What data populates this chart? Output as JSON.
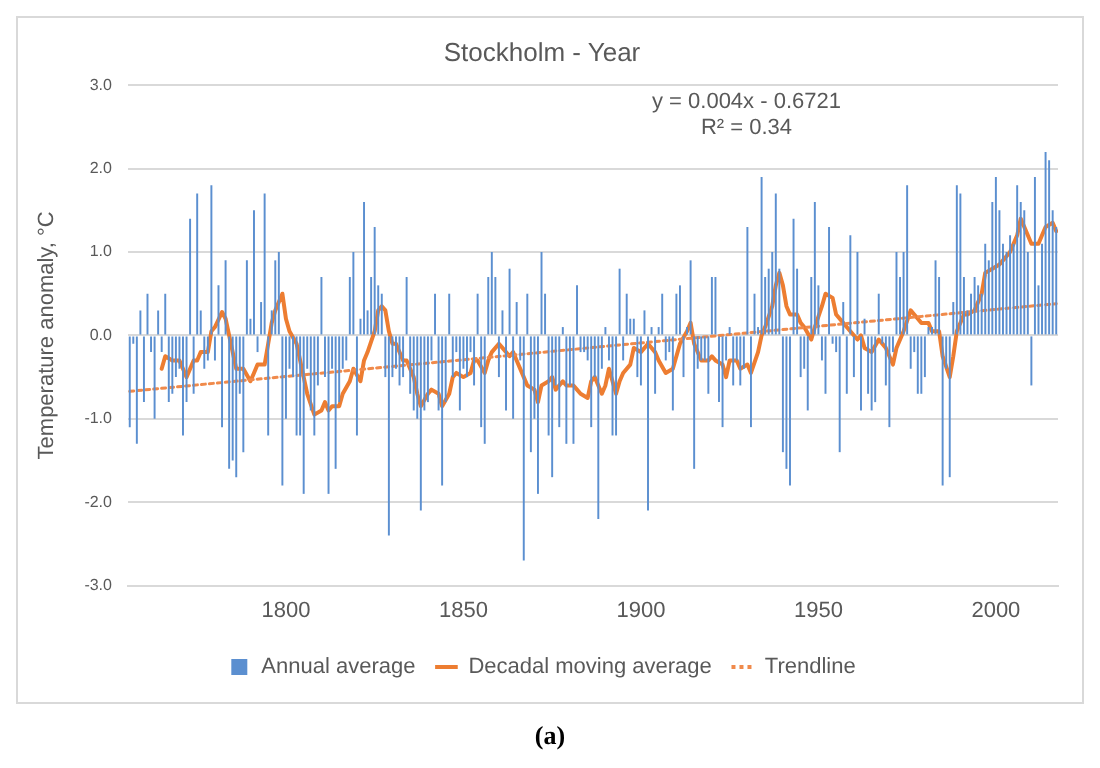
{
  "chart_data": {
    "type": "bar",
    "title": "Stockholm - Year",
    "ylabel": "Temperature anomaly, °C",
    "annotations": [
      "y = 0.004x - 0.6721",
      "R² = 0.34",
      "(a)"
    ],
    "x": [
      1756,
      1757,
      1758,
      1759,
      1760,
      1761,
      1762,
      1763,
      1764,
      1765,
      1766,
      1767,
      1768,
      1769,
      1770,
      1771,
      1772,
      1773,
      1774,
      1775,
      1776,
      1777,
      1778,
      1779,
      1780,
      1781,
      1782,
      1783,
      1784,
      1785,
      1786,
      1787,
      1788,
      1789,
      1790,
      1791,
      1792,
      1793,
      1794,
      1795,
      1796,
      1797,
      1798,
      1799,
      1800,
      1801,
      1802,
      1803,
      1804,
      1805,
      1806,
      1807,
      1808,
      1809,
      1810,
      1811,
      1812,
      1813,
      1814,
      1815,
      1816,
      1817,
      1818,
      1819,
      1820,
      1821,
      1822,
      1823,
      1824,
      1825,
      1826,
      1827,
      1828,
      1829,
      1830,
      1831,
      1832,
      1833,
      1834,
      1835,
      1836,
      1837,
      1838,
      1839,
      1840,
      1841,
      1842,
      1843,
      1844,
      1845,
      1846,
      1847,
      1848,
      1849,
      1850,
      1851,
      1852,
      1853,
      1854,
      1855,
      1856,
      1857,
      1858,
      1859,
      1860,
      1861,
      1862,
      1863,
      1864,
      1865,
      1866,
      1867,
      1868,
      1869,
      1870,
      1871,
      1872,
      1873,
      1874,
      1875,
      1876,
      1877,
      1878,
      1879,
      1880,
      1881,
      1882,
      1883,
      1884,
      1885,
      1886,
      1887,
      1888,
      1889,
      1890,
      1891,
      1892,
      1893,
      1894,
      1895,
      1896,
      1897,
      1898,
      1899,
      1900,
      1901,
      1902,
      1903,
      1904,
      1905,
      1906,
      1907,
      1908,
      1909,
      1910,
      1911,
      1912,
      1913,
      1914,
      1915,
      1916,
      1917,
      1918,
      1919,
      1920,
      1921,
      1922,
      1923,
      1924,
      1925,
      1926,
      1927,
      1928,
      1929,
      1930,
      1931,
      1932,
      1933,
      1934,
      1935,
      1936,
      1937,
      1938,
      1939,
      1940,
      1941,
      1942,
      1943,
      1944,
      1945,
      1946,
      1947,
      1948,
      1949,
      1950,
      1951,
      1952,
      1953,
      1954,
      1955,
      1956,
      1957,
      1958,
      1959,
      1960,
      1961,
      1962,
      1963,
      1964,
      1965,
      1966,
      1967,
      1968,
      1969,
      1970,
      1971,
      1972,
      1973,
      1974,
      1975,
      1976,
      1977,
      1978,
      1979,
      1980,
      1981,
      1982,
      1983,
      1984,
      1985,
      1986,
      1987,
      1988,
      1989,
      1990,
      1991,
      1992,
      1993,
      1994,
      1995,
      1996,
      1997,
      1998,
      1999,
      2000,
      2001,
      2002,
      2003,
      2004,
      2005,
      2006,
      2007,
      2008,
      2009,
      2010,
      2011,
      2012,
      2013,
      2014,
      2015,
      2016,
      2017
    ],
    "xlim": [
      1755.5,
      2017.5
    ],
    "xticks": [
      1800,
      1850,
      1900,
      1950,
      2000
    ],
    "ylim": [
      -3,
      3
    ],
    "yticks": [
      {
        "value": -3,
        "label": "-3.0"
      },
      {
        "value": -2,
        "label": "-2.0"
      },
      {
        "value": -1,
        "label": "-1.0"
      },
      {
        "value": 0,
        "label": "0.0"
      },
      {
        "value": 1,
        "label": "1.0"
      },
      {
        "value": 2,
        "label": "2.0"
      },
      {
        "value": 3,
        "label": "3.0"
      }
    ],
    "grid": "y",
    "legend": "bottom",
    "marker": "none",
    "series": [
      {
        "name": "Annual average",
        "type": "bar",
        "color": "#5b8fd0",
        "values": [
          -1.1,
          -0.1,
          -1.3,
          0.3,
          -0.8,
          0.5,
          -0.2,
          -1.0,
          0.3,
          -0.2,
          0.5,
          -0.8,
          -0.7,
          -0.5,
          -0.4,
          -1.2,
          -0.8,
          1.4,
          -0.7,
          1.7,
          0.3,
          -0.4,
          -0.3,
          1.8,
          -0.3,
          0.6,
          -1.1,
          0.9,
          -1.6,
          -1.5,
          -1.7,
          -0.7,
          -1.4,
          0.9,
          0.2,
          1.5,
          -0.2,
          0.4,
          1.7,
          -1.2,
          0.3,
          0.9,
          1.0,
          -1.8,
          -1.0,
          -0.4,
          -0.5,
          -1.2,
          -1.2,
          -1.9,
          -0.4,
          -0.9,
          -1.2,
          -0.6,
          0.7,
          -0.5,
          -1.9,
          -0.4,
          -1.6,
          -0.8,
          -0.4,
          -0.3,
          0.7,
          1.0,
          -1.2,
          0.2,
          1.6,
          0.3,
          0.7,
          1.3,
          0.6,
          0.5,
          -0.5,
          -2.4,
          -0.5,
          -0.4,
          -0.6,
          -0.5,
          0.7,
          -0.7,
          -0.9,
          -1.0,
          -2.1,
          -0.9,
          -0.8,
          -0.3,
          0.5,
          -0.9,
          -1.8,
          -0.8,
          0.5,
          -0.5,
          -0.2,
          -0.9,
          -0.4,
          -0.5,
          -0.2,
          -0.6,
          0.5,
          -1.1,
          -1.3,
          0.7,
          1.0,
          0.7,
          -0.5,
          0.3,
          -0.9,
          0.8,
          -1.0,
          0.4,
          -0.3,
          -2.7,
          0.5,
          -1.4,
          -1.0,
          -1.9,
          1.0,
          0.5,
          -1.2,
          -1.7,
          -0.6,
          -1.1,
          0.1,
          -1.3,
          -0.6,
          -1.3,
          0.6,
          -0.2,
          -0.2,
          -0.3,
          -1.1,
          -0.5,
          -2.2,
          -0.4,
          0.1,
          -0.3,
          -1.2,
          -1.2,
          0.8,
          -0.3,
          0.5,
          0.2,
          0.2,
          -0.5,
          -0.6,
          0.3,
          -2.1,
          0.1,
          -0.7,
          0.1,
          0.5,
          -0.3,
          -0.2,
          -0.9,
          0.5,
          0.6,
          -0.5,
          0.1,
          0.9,
          -1.6,
          -0.4,
          -0.3,
          -0.3,
          -0.7,
          0.7,
          0.7,
          -0.8,
          -1.1,
          -0.3,
          0.1,
          -0.6,
          -0.3,
          -0.6,
          -0.4,
          1.3,
          -1.1,
          0.5,
          0.1,
          1.9,
          0.7,
          0.8,
          1.0,
          1.7,
          0.8,
          -1.4,
          -1.6,
          -1.8,
          1.4,
          0.8,
          -0.5,
          -0.4,
          -0.9,
          0.7,
          1.6,
          0.6,
          -0.3,
          -0.7,
          1.3,
          -0.1,
          -0.2,
          -1.4,
          0.4,
          -0.7,
          1.2,
          -0.5,
          1.0,
          -0.9,
          0.2,
          -0.7,
          -0.9,
          -0.8,
          0.5,
          -0.1,
          -0.6,
          -1.1,
          -0.2,
          1.0,
          0.7,
          1.0,
          1.8,
          -0.4,
          -0.2,
          -0.7,
          -0.7,
          -0.5,
          0.1,
          0.1,
          0.9,
          0.7,
          -1.8,
          -0.4,
          -1.7,
          0.4,
          1.8,
          1.7,
          0.7,
          0.3,
          0.5,
          0.7,
          0.6,
          0.5,
          1.1,
          0.9,
          1.6,
          1.9,
          1.5,
          1.1,
          1.0,
          1.2,
          1.1,
          1.8,
          1.6,
          1.5,
          1.0,
          -0.6,
          1.9,
          0.6,
          1.1,
          2.2,
          2.1,
          1.5,
          1.3
        ]
      },
      {
        "name": "Decadal moving average",
        "type": "line",
        "color": "#ed7d31",
        "x": [
          1765,
          1766,
          1768,
          1770,
          1772,
          1774,
          1775,
          1776,
          1778,
          1779,
          1780,
          1782,
          1783,
          1784,
          1786,
          1788,
          1790,
          1791,
          1792,
          1794,
          1795,
          1796,
          1797,
          1799,
          1800,
          1801,
          1803,
          1805,
          1806,
          1808,
          1810,
          1811,
          1812,
          1813,
          1815,
          1816,
          1818,
          1819,
          1821,
          1822,
          1823,
          1825,
          1826,
          1827,
          1828,
          1829,
          1830,
          1831,
          1833,
          1834,
          1836,
          1837,
          1838,
          1840,
          1841,
          1843,
          1844,
          1846,
          1847,
          1848,
          1850,
          1852,
          1853,
          1854,
          1856,
          1857,
          1858,
          1860,
          1861,
          1863,
          1864,
          1865,
          1867,
          1868,
          1870,
          1871,
          1872,
          1874,
          1875,
          1876,
          1878,
          1879,
          1881,
          1882,
          1883,
          1885,
          1886,
          1887,
          1889,
          1890,
          1891,
          1893,
          1894,
          1895,
          1897,
          1898,
          1900,
          1902,
          1904,
          1905,
          1907,
          1909,
          1911,
          1913,
          1914,
          1915,
          1917,
          1919,
          1920,
          1921,
          1923,
          1924,
          1925,
          1927,
          1928,
          1930,
          1931,
          1933,
          1934,
          1935,
          1937,
          1938,
          1939,
          1940,
          1941,
          1942,
          1944,
          1945,
          1946,
          1948,
          1949,
          1951,
          1952,
          1954,
          1955,
          1957,
          1959,
          1961,
          1962,
          1963,
          1965,
          1967,
          1969,
          1971,
          1972,
          1974,
          1976,
          1977,
          1979,
          1981,
          1982,
          1984,
          1985,
          1987,
          1988,
          1989,
          1991,
          1992,
          1994,
          1996,
          1997,
          1999,
          2001,
          2002,
          2004,
          2006,
          2007,
          2009,
          2010,
          2012,
          2013,
          2014,
          2016,
          2017
        ],
        "values": [
          -0.4,
          -0.25,
          -0.3,
          -0.3,
          -0.5,
          -0.3,
          -0.3,
          -0.2,
          -0.2,
          0.05,
          0.1,
          0.28,
          0.2,
          0.0,
          -0.4,
          -0.4,
          -0.55,
          -0.45,
          -0.35,
          -0.35,
          -0.1,
          0.15,
          0.3,
          0.5,
          0.2,
          0.05,
          -0.1,
          -0.5,
          -0.7,
          -0.95,
          -0.9,
          -0.8,
          -0.9,
          -0.85,
          -0.85,
          -0.7,
          -0.55,
          -0.4,
          -0.55,
          -0.3,
          -0.2,
          0.05,
          0.3,
          0.35,
          0.3,
          0.05,
          -0.1,
          -0.1,
          -0.3,
          -0.3,
          -0.5,
          -0.7,
          -0.85,
          -0.7,
          -0.65,
          -0.7,
          -0.85,
          -0.7,
          -0.5,
          -0.45,
          -0.5,
          -0.45,
          -0.3,
          -0.3,
          -0.45,
          -0.3,
          -0.2,
          -0.1,
          -0.15,
          -0.25,
          -0.2,
          -0.3,
          -0.5,
          -0.6,
          -0.65,
          -0.8,
          -0.6,
          -0.55,
          -0.5,
          -0.65,
          -0.55,
          -0.6,
          -0.6,
          -0.65,
          -0.7,
          -0.75,
          -0.55,
          -0.5,
          -0.7,
          -0.6,
          -0.4,
          -0.7,
          -0.55,
          -0.45,
          -0.35,
          -0.15,
          -0.2,
          -0.1,
          -0.2,
          -0.3,
          -0.45,
          -0.4,
          -0.1,
          0.05,
          0.15,
          -0.1,
          -0.3,
          -0.3,
          -0.25,
          -0.3,
          -0.35,
          -0.5,
          -0.3,
          -0.3,
          -0.4,
          -0.35,
          -0.45,
          -0.2,
          0.0,
          0.1,
          0.35,
          0.6,
          0.75,
          0.6,
          0.35,
          0.25,
          0.25,
          0.15,
          0.1,
          -0.05,
          0.1,
          0.35,
          0.5,
          0.45,
          0.25,
          0.15,
          0.05,
          -0.05,
          0.0,
          -0.15,
          -0.2,
          -0.05,
          -0.15,
          -0.35,
          -0.15,
          0.05,
          0.3,
          0.25,
          0.15,
          0.15,
          0.05,
          0.05,
          -0.25,
          -0.5,
          -0.25,
          0.05,
          0.25,
          0.25,
          0.3,
          0.5,
          0.75,
          0.8,
          0.85,
          0.9,
          1.0,
          1.2,
          1.4,
          1.2,
          1.1,
          1.1,
          1.2,
          1.3,
          1.35,
          1.25
        ]
      },
      {
        "name": "Trendline",
        "type": "line",
        "line_style": "dotted",
        "color": "#f08a4b",
        "x": [
          1756,
          2017
        ],
        "values": [
          -0.67,
          0.38
        ]
      }
    ]
  }
}
